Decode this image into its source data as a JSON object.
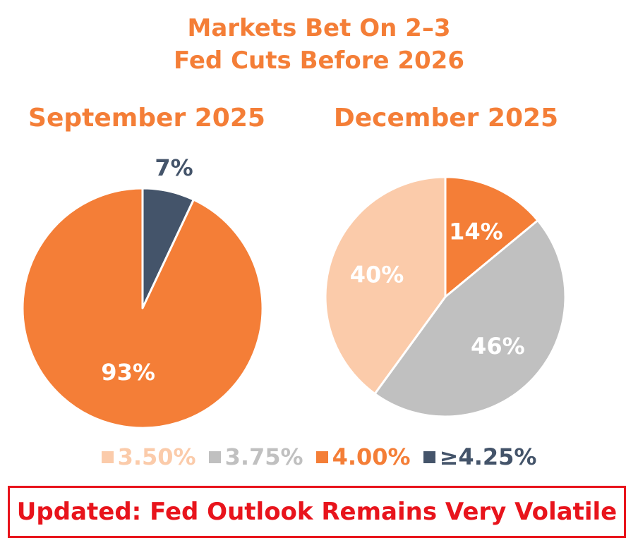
{
  "title": {
    "line1": "Markets Bet On 2–3",
    "line2": "Fed Cuts Before 2026"
  },
  "colors": {
    "orange": "#F47E37",
    "light_peach": "#FBCBAA",
    "gray": "#C0C0C0",
    "navy": "#44546A",
    "red": "#E8141C"
  },
  "legend": [
    {
      "label": "3.50%",
      "color": "#FBCBAA"
    },
    {
      "label": "3.75%",
      "color": "#C0C0C0"
    },
    {
      "label": "4.00%",
      "color": "#F47E37"
    },
    {
      "label": "≥4.25%",
      "color": "#44546A"
    }
  ],
  "banner": {
    "text": "Updated: Fed Outlook Remains Very Volatile"
  },
  "chart_data": [
    {
      "type": "pie",
      "title": "September 2025",
      "slices": [
        {
          "category": "≥4.25%",
          "value": 7,
          "label": "7%",
          "color": "#44546A",
          "label_color": "#44546A",
          "label_position": "outside"
        },
        {
          "category": "4.00%",
          "value": 93,
          "label": "93%",
          "color": "#F47E37",
          "label_color": "#FFFFFF",
          "label_position": "inside"
        }
      ]
    },
    {
      "type": "pie",
      "title": "December 2025",
      "slices": [
        {
          "category": "4.00%",
          "value": 14,
          "label": "14%",
          "color": "#F47E37",
          "label_color": "#FFFFFF",
          "label_position": "inside"
        },
        {
          "category": "3.75%",
          "value": 46,
          "label": "46%",
          "color": "#C0C0C0",
          "label_color": "#FFFFFF",
          "label_position": "inside"
        },
        {
          "category": "3.50%",
          "value": 40,
          "label": "40%",
          "color": "#FBCBAA",
          "label_color": "#FFFFFF",
          "label_position": "inside"
        }
      ]
    }
  ]
}
